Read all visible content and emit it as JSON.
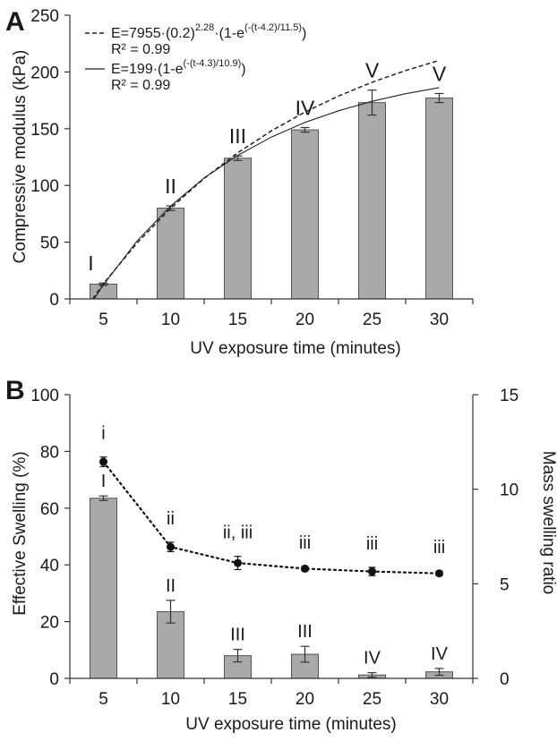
{
  "figure": {
    "panel_labels": [
      "A",
      "B"
    ]
  },
  "chart_data": [
    {
      "panel": "A",
      "type": "bar",
      "categories": [
        "5",
        "10",
        "15",
        "20",
        "25",
        "30"
      ],
      "values": [
        13,
        80,
        124,
        149,
        173,
        177
      ],
      "errors": [
        1,
        2,
        2,
        2,
        11,
        4
      ],
      "group_labels": [
        "I",
        "II",
        "III",
        "IV",
        "V",
        "V"
      ],
      "xlabel": "UV exposure time (minutes)",
      "ylabel": "Compressive modulus (kPa)",
      "ylim": [
        0,
        250
      ],
      "yticks": [
        "0",
        "50",
        "100",
        "150",
        "200",
        "250"
      ],
      "bar_color": "#a9a9a9",
      "fits": [
        {
          "name": "E=7955·(0.2)^2.28·(1-e^(-(t-4.2)/11.5))",
          "r2": "R² = 0.99",
          "style": "dashed",
          "x": [
            4.2,
            5,
            7.5,
            10,
            12.5,
            15,
            17.5,
            20,
            22.5,
            25,
            27.5,
            30
          ],
          "y": [
            0,
            13.4,
            49.2,
            79.9,
            106.2,
            128.8,
            148.1,
            164.6,
            178.8,
            190.9,
            201.3,
            210.2
          ]
        },
        {
          "name": "E=199·(1-e^(-(t-4.3)/10.9))",
          "r2": "R² = 0.99",
          "style": "solid",
          "x": [
            4.3,
            5,
            7.5,
            10,
            12.5,
            15,
            17.5,
            20,
            22.5,
            25,
            27.5,
            30
          ],
          "y": [
            0,
            12.4,
            51.0,
            81.8,
            106.6,
            126.5,
            142.6,
            155.5,
            165.8,
            174.1,
            180.8,
            186.2
          ]
        }
      ],
      "legend": {
        "line1_prefix": "E=7955·(0.2)",
        "line1_sup": "2.28",
        "line1_mid": "·(1-e",
        "line1_exp": "(-(t-4.2)/11.5)",
        "line1_suffix": ")",
        "line1_r2": "R² = 0.99",
        "line2_prefix": "E=199·(1-e",
        "line2_exp": "(-(t-4.3)/10.9)",
        "line2_suffix": ")",
        "line2_r2": "R² = 0.99"
      }
    },
    {
      "panel": "B",
      "type": "bar",
      "categories": [
        "5",
        "10",
        "15",
        "20",
        "25",
        "30"
      ],
      "series": [
        {
          "type": "bar",
          "axis": "left",
          "values": [
            63.5,
            23.5,
            8,
            8.5,
            1.2,
            2.3
          ],
          "errors": [
            0.8,
            4,
            2.2,
            2.8,
            0.8,
            1.2
          ],
          "group_labels": [
            "I",
            "II",
            "III",
            "III",
            "IV",
            "IV"
          ]
        },
        {
          "type": "line",
          "style": "dotted",
          "axis": "right",
          "values": [
            11.45,
            6.95,
            6.1,
            5.8,
            5.65,
            5.55
          ],
          "errors": [
            0.25,
            0.25,
            0.35,
            0.12,
            0.22,
            0.12
          ],
          "group_labels": [
            "i",
            "ii",
            "ii, iii",
            "iii",
            "iii",
            "iii"
          ]
        }
      ],
      "xlabel": "UV exposure time (minutes)",
      "ylabel": "Effective Swelling (%)",
      "y2label": "Mass swelling ratio",
      "ylim": [
        0,
        100
      ],
      "y2lim": [
        0,
        15
      ],
      "yticks": [
        "0",
        "20",
        "40",
        "60",
        "80",
        "100"
      ],
      "y2ticks": [
        "0",
        "5",
        "10",
        "15"
      ],
      "bar_color": "#a9a9a9"
    }
  ]
}
